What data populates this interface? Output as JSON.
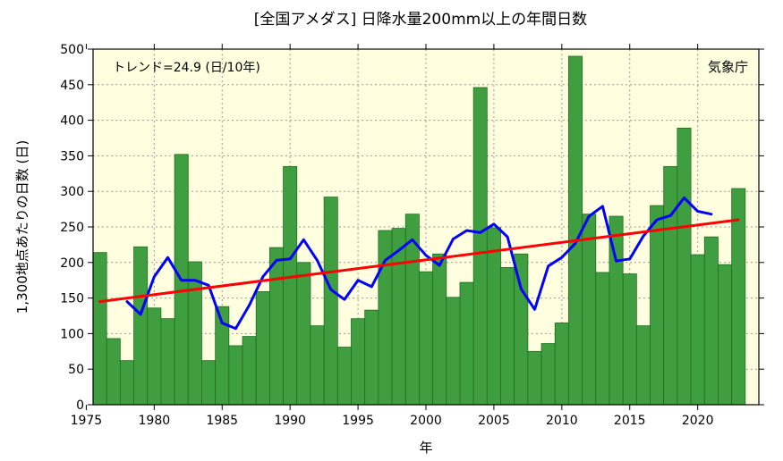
{
  "chart_data": {
    "type": "bar",
    "title": "[全国アメダス] 日降水量200mm以上の年間日数",
    "xlabel": "年",
    "ylabel": "1,300地点あたりの日数 (日)",
    "annotation_trend": "トレンド=24.9 (日/10年)",
    "annotation_source": "気象庁",
    "xlim": [
      1975,
      2024
    ],
    "ylim": [
      0,
      500
    ],
    "x_ticks": [
      1975,
      1980,
      1985,
      1990,
      1995,
      2000,
      2005,
      2010,
      2015,
      2020
    ],
    "y_ticks": [
      0,
      50,
      100,
      150,
      200,
      250,
      300,
      350,
      400,
      450,
      500
    ],
    "grid": true,
    "series": [
      {
        "kind": "bar",
        "years": [
          1976,
          1977,
          1978,
          1979,
          1980,
          1981,
          1982,
          1983,
          1984,
          1985,
          1986,
          1987,
          1988,
          1989,
          1990,
          1991,
          1992,
          1993,
          1994,
          1995,
          1996,
          1997,
          1998,
          1999,
          2000,
          2001,
          2002,
          2003,
          2004,
          2005,
          2006,
          2007,
          2008,
          2009,
          2010,
          2011,
          2012,
          2013,
          2014,
          2015,
          2016,
          2017,
          2018,
          2019,
          2020,
          2021,
          2022,
          2023
        ],
        "values": [
          214,
          93,
          62,
          222,
          136,
          121,
          352,
          201,
          62,
          138,
          83,
          96,
          159,
          221,
          335,
          200,
          111,
          292,
          81,
          121,
          133,
          245,
          248,
          268,
          187,
          212,
          151,
          172,
          446,
          249,
          193,
          212,
          75,
          86,
          115,
          490,
          268,
          186,
          265,
          184,
          111,
          280,
          335,
          389,
          211,
          236,
          197,
          304
        ],
        "color": "#3f9e3f"
      },
      {
        "kind": "line",
        "description": "5-year running mean",
        "years": [
          1978,
          1979,
          1980,
          1981,
          1982,
          1983,
          1984,
          1985,
          1986,
          1987,
          1988,
          1989,
          1990,
          1991,
          1992,
          1993,
          1994,
          1995,
          1996,
          1997,
          1998,
          1999,
          2000,
          2001,
          2002,
          2003,
          2004,
          2005,
          2006,
          2007,
          2008,
          2009,
          2010,
          2011,
          2012,
          2013,
          2014,
          2015,
          2016,
          2017,
          2018,
          2019,
          2020,
          2021
        ],
        "values": [
          145,
          127,
          180,
          207,
          175,
          175,
          168,
          115,
          107,
          140,
          180,
          203,
          205,
          232,
          203,
          162,
          148,
          175,
          166,
          203,
          217,
          232,
          210,
          196,
          233,
          245,
          242,
          254,
          236,
          163,
          134,
          195,
          207,
          227,
          265,
          279,
          202,
          205,
          237,
          260,
          266,
          291,
          272,
          268
        ],
        "color": "#0000ff"
      },
      {
        "kind": "line",
        "description": "linear trend",
        "years": [
          1976,
          2023
        ],
        "values": [
          145,
          260
        ],
        "color": "#ff0000"
      }
    ]
  }
}
